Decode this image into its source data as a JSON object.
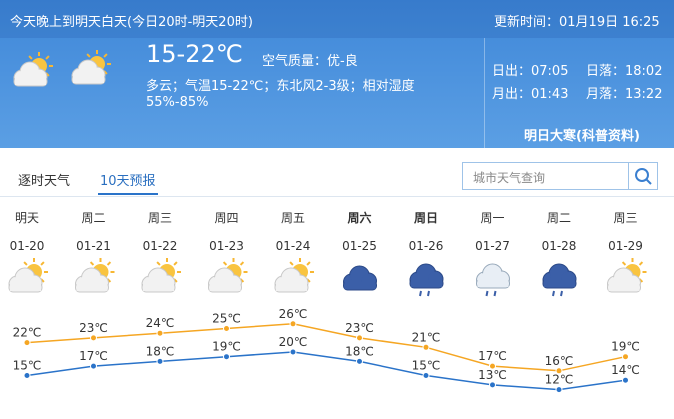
{
  "header": {
    "title": "今天晚上到明天白天(今日20时-明天20时)",
    "update_time": "更新时间：01月19日 16:25"
  },
  "today": {
    "temperature": "15-22℃",
    "air_quality": "空气质量：优-良",
    "description": "多云；气温15-22℃；东北风2-3级；相对湿度",
    "humidity": "55%-85%"
  },
  "astro": {
    "sunrise": "日出：07:05",
    "sunset": "日落：18:02",
    "moonrise": "月出：01:43",
    "moonset": "月落：13:22",
    "note": "明日大寒(科普资料)"
  },
  "tabs": [
    "逐时天气",
    "10天预报"
  ],
  "search_placeholder": "城市天气查询",
  "forecast": {
    "days": [
      "明天",
      "周二",
      "周三",
      "周四",
      "周五",
      "周六",
      "周日",
      "周一",
      "周二",
      "周三"
    ],
    "dates": [
      "01-20",
      "01-21",
      "01-22",
      "01-23",
      "01-24",
      "01-25",
      "01-26",
      "01-27",
      "01-28",
      "01-29"
    ],
    "highs": [
      22,
      23,
      24,
      25,
      26,
      23,
      21,
      17,
      16,
      19
    ],
    "high_labels": [
      "22℃",
      "23℃",
      "24℃",
      "25℃",
      "26℃",
      "23℃",
      "21℃",
      "17℃",
      "16℃",
      "19℃"
    ],
    "lows": [
      15,
      17,
      18,
      19,
      20,
      18,
      15,
      13,
      12,
      14
    ],
    "low_labels": [
      "15℃",
      "17℃",
      "18℃",
      "19℃",
      "20℃",
      "18℃",
      "15℃",
      "13℃",
      "12℃",
      "14℃"
    ]
  }
}
